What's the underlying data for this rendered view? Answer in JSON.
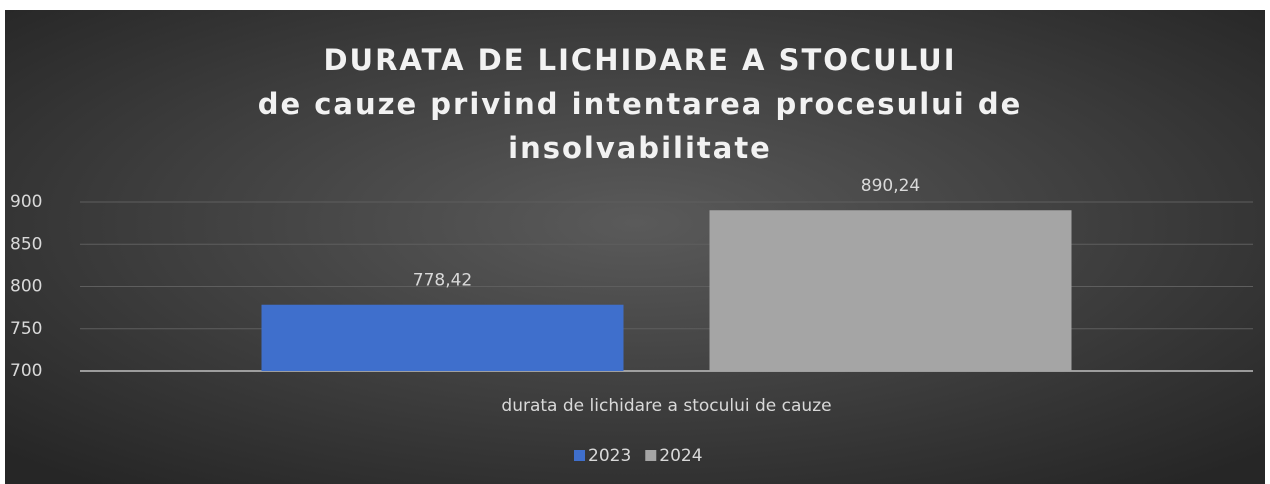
{
  "chart_data": {
    "type": "bar",
    "title": [
      "DURATA DE LICHIDARE A STOCULUI",
      "de cauze privind intentarea procesului de",
      "insolvabilitate"
    ],
    "categories": [
      "durata de lichidare a stocului de cauze"
    ],
    "series": [
      {
        "name": "2023",
        "color": "#3f6fcc",
        "values": [
          778.42
        ],
        "value_labels": [
          "778,42"
        ]
      },
      {
        "name": "2024",
        "color": "#a5a5a5",
        "values": [
          890.24
        ],
        "value_labels": [
          "890,24"
        ]
      }
    ],
    "ylim": [
      700,
      900
    ],
    "yticks": [
      700,
      750,
      800,
      850,
      900
    ],
    "grid": true,
    "legend": "bottom"
  }
}
